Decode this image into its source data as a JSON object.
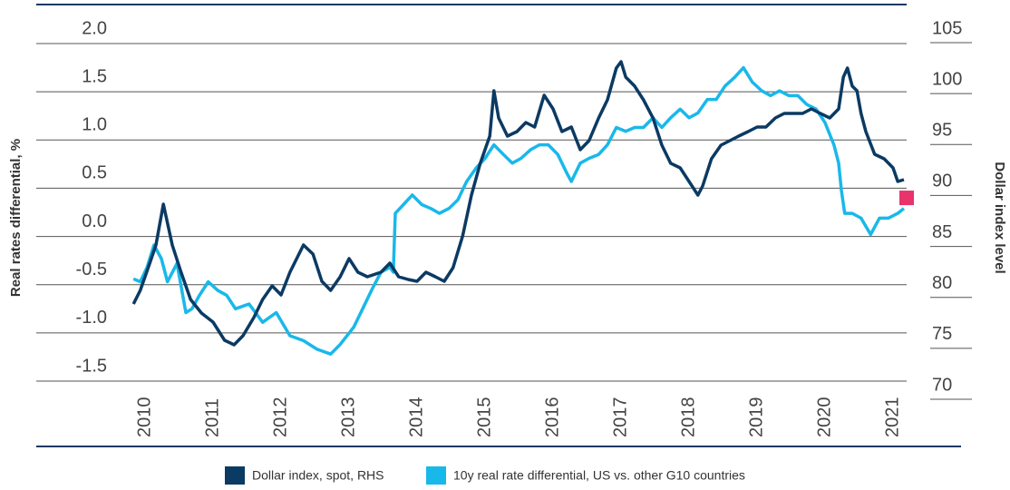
{
  "chart_data": {
    "type": "line",
    "y_label": "Real rates differential, %",
    "y2_label": "Dollar index level",
    "xlim": [
      2008.4,
      2021.2
    ],
    "xticks": [
      2010,
      2011,
      2012,
      2013,
      2014,
      2015,
      2016,
      2017,
      2018,
      2019,
      2020,
      2021
    ],
    "ylim": [
      -1.5,
      2.0
    ],
    "yticks": [
      {
        "value": 2.0,
        "label": "2.0"
      },
      1.5,
      {
        "value": 1.0,
        "label": "1.0"
      },
      0.5,
      {
        "value": 0.0,
        "label": "0.0"
      },
      -0.5,
      {
        "value": -1.0,
        "label": "-1.0"
      },
      -1.5
    ],
    "y2lim": [
      70,
      105
    ],
    "y2ticks": [
      105,
      100,
      95,
      90,
      85,
      80,
      75,
      70
    ],
    "grid": true,
    "legend": "bottom",
    "series": [
      {
        "name": "Dollar index, spot, RHS",
        "color": "#0b3a63",
        "axis": "y2",
        "x": [
          2009.83,
          2009.93,
          2010.07,
          2010.16,
          2010.27,
          2010.4,
          2010.53,
          2010.67,
          2010.83,
          2011.0,
          2011.17,
          2011.31,
          2011.44,
          2011.6,
          2011.73,
          2011.87,
          2012.0,
          2012.13,
          2012.33,
          2012.47,
          2012.6,
          2012.73,
          2012.87,
          2013.0,
          2013.13,
          2013.27,
          2013.47,
          2013.6,
          2013.73,
          2013.87,
          2014.0,
          2014.13,
          2014.27,
          2014.4,
          2014.53,
          2014.67,
          2014.8,
          2014.93,
          2015.07,
          2015.13,
          2015.2,
          2015.33,
          2015.47,
          2015.6,
          2015.73,
          2015.87,
          2016.0,
          2016.13,
          2016.27,
          2016.4,
          2016.53,
          2016.67,
          2016.8,
          2016.93,
          2017.0,
          2017.07,
          2017.2,
          2017.33,
          2017.47,
          2017.6,
          2017.73,
          2017.87,
          2018.0,
          2018.13,
          2018.2,
          2018.33,
          2018.47,
          2018.6,
          2018.73,
          2018.87,
          2019.0,
          2019.13,
          2019.27,
          2019.4,
          2019.53,
          2019.67,
          2019.8,
          2019.93,
          2020.07,
          2020.2,
          2020.27,
          2020.33,
          2020.4,
          2020.47,
          2020.53,
          2020.6,
          2020.73,
          2020.87,
          2021.0,
          2021.07,
          2021.16
        ],
        "values": [
          79.35,
          80.69,
          83.36,
          85.14,
          89.15,
          85.14,
          82.47,
          79.8,
          78.46,
          77.57,
          75.79,
          75.34,
          76.23,
          78.02,
          79.8,
          81.13,
          80.24,
          82.47,
          85.14,
          84.25,
          81.58,
          80.69,
          82.02,
          83.8,
          82.47,
          82.02,
          82.47,
          83.36,
          82.02,
          81.76,
          81.58,
          82.47,
          82.02,
          81.58,
          82.91,
          86.03,
          90.04,
          93.16,
          95.83,
          100.28,
          97.61,
          95.83,
          96.27,
          97.16,
          96.72,
          99.84,
          98.5,
          96.27,
          96.72,
          94.49,
          95.38,
          97.61,
          99.39,
          102.51,
          103.13,
          101.62,
          100.73,
          99.39,
          97.61,
          94.94,
          93.16,
          92.71,
          91.37,
          90.04,
          90.93,
          93.6,
          94.94,
          95.38,
          95.83,
          96.27,
          96.72,
          96.72,
          97.61,
          98.05,
          98.05,
          98.05,
          98.5,
          98.05,
          97.61,
          98.5,
          101.62,
          102.51,
          100.73,
          100.28,
          98.05,
          96.27,
          94.05,
          93.6,
          92.71,
          91.37,
          91.55
        ]
      },
      {
        "name": "10y real rate differential, US vs. other G10 countries",
        "color": "#19b8ea",
        "x": [
          2009.83,
          2009.93,
          2010.03,
          2010.13,
          2010.24,
          2010.33,
          2010.47,
          2010.6,
          2010.69,
          2010.8,
          2010.93,
          2011.07,
          2011.2,
          2011.33,
          2011.53,
          2011.73,
          2011.93,
          2012.13,
          2012.33,
          2012.53,
          2012.73,
          2012.87,
          2013.07,
          2013.2,
          2013.33,
          2013.47,
          2013.6,
          2013.65,
          2013.68,
          2013.8,
          2013.93,
          2014.07,
          2014.2,
          2014.33,
          2014.47,
          2014.6,
          2014.73,
          2014.87,
          2015.0,
          2015.13,
          2015.27,
          2015.4,
          2015.53,
          2015.67,
          2015.8,
          2015.93,
          2016.07,
          2016.2,
          2016.27,
          2016.4,
          2016.53,
          2016.67,
          2016.8,
          2016.93,
          2017.07,
          2017.2,
          2017.33,
          2017.47,
          2017.6,
          2017.73,
          2017.87,
          2018.0,
          2018.13,
          2018.27,
          2018.4,
          2018.53,
          2018.67,
          2018.8,
          2018.93,
          2019.07,
          2019.2,
          2019.33,
          2019.47,
          2019.6,
          2019.73,
          2019.87,
          2020.0,
          2020.13,
          2020.2,
          2020.24,
          2020.29,
          2020.4,
          2020.53,
          2020.67,
          2020.8,
          2020.93,
          2021.07,
          2021.16
        ],
        "values": [
          -0.44,
          -0.47,
          -0.32,
          -0.09,
          -0.23,
          -0.47,
          -0.28,
          -0.79,
          -0.75,
          -0.61,
          -0.47,
          -0.56,
          -0.61,
          -0.75,
          -0.7,
          -0.89,
          -0.79,
          -1.03,
          -1.08,
          -1.17,
          -1.22,
          -1.12,
          -0.94,
          -0.75,
          -0.56,
          -0.37,
          -0.32,
          -0.37,
          0.24,
          0.33,
          0.43,
          0.33,
          0.29,
          0.24,
          0.29,
          0.38,
          0.57,
          0.71,
          0.81,
          0.95,
          0.85,
          0.76,
          0.81,
          0.9,
          0.95,
          0.95,
          0.85,
          0.66,
          0.57,
          0.76,
          0.81,
          0.85,
          0.95,
          1.13,
          1.09,
          1.13,
          1.13,
          1.23,
          1.13,
          1.23,
          1.32,
          1.23,
          1.28,
          1.42,
          1.42,
          1.56,
          1.65,
          1.75,
          1.6,
          1.51,
          1.46,
          1.51,
          1.46,
          1.46,
          1.37,
          1.32,
          1.18,
          0.95,
          0.76,
          0.48,
          0.24,
          0.24,
          0.19,
          0.02,
          0.19,
          0.19,
          0.24,
          0.29
        ]
      }
    ],
    "highlight": {
      "x": 2021.2,
      "value": 0.4,
      "color": "#e8336b"
    }
  }
}
